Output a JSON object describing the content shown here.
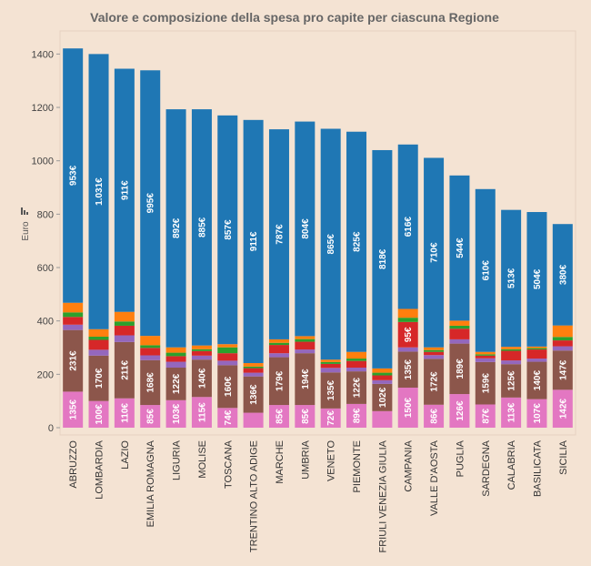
{
  "chart_data": {
    "type": "bar",
    "stacked": true,
    "title": "Valore e composizione della spesa pro capite per ciascuna Regione",
    "ylabel": "Euro",
    "ylim": [
      0,
      1470
    ],
    "yticks": [
      0,
      200,
      400,
      600,
      800,
      1000,
      1200,
      1400
    ],
    "grid": false,
    "categories": [
      "ABRUZZO",
      "LOMBARDIA",
      "LAZIO",
      "EMILIA ROMAGNA",
      "LIGURIA",
      "MOLISE",
      "TOSCANA",
      "TRENTINO ALTO ADIGE",
      "MARCHE",
      "UMBRIA",
      "VENETO",
      "PIEMONTE",
      "FRIULI VENEZIA GIULIA",
      "CAMPANIA",
      "VALLE D'AOSTA",
      "PUGLIA",
      "SARDEGNA",
      "CALABRIA",
      "BASILICATA",
      "SICILIA"
    ],
    "series": [
      {
        "color": "#e377c2",
        "values": [
          135,
          100,
          110,
          85,
          103,
          115,
          74,
          56,
          85,
          85,
          72,
          89,
          62,
          150,
          86,
          126,
          87,
          113,
          107,
          142
        ],
        "labels": [
          "135€",
          "100€",
          "110€",
          "85€",
          "103€",
          "115€",
          "74€",
          "",
          "85€",
          "85€",
          "72€",
          "89€",
          "",
          "150€",
          "86€",
          "126€",
          "87€",
          "113€",
          "107€",
          "142€"
        ]
      },
      {
        "color": "#8c564b",
        "values": [
          231,
          170,
          211,
          168,
          122,
          140,
          160,
          136,
          179,
          194,
          135,
          122,
          102,
          135,
          172,
          189,
          159,
          125,
          140,
          147
        ],
        "labels": [
          "231€",
          "170€",
          "211€",
          "168€",
          "122€",
          "140€",
          "160€",
          "136€",
          "179€",
          "194€",
          "135€",
          "122€",
          "102€",
          "135€",
          "172€",
          "189€",
          "159€",
          "125€",
          "140€",
          "147€"
        ]
      },
      {
        "color": "#9467bd",
        "values": [
          20,
          22,
          25,
          18,
          22,
          15,
          17,
          14,
          15,
          14,
          17,
          14,
          14,
          16,
          14,
          16,
          14,
          14,
          12,
          16
        ],
        "labels": []
      },
      {
        "color": "#d62728",
        "values": [
          29,
          37,
          36,
          28,
          21,
          17,
          28,
          17,
          31,
          29,
          15,
          25,
          18,
          95,
          12,
          40,
          10,
          36,
          34,
          22
        ],
        "labels": [
          "",
          "",
          "",
          "",
          "",
          "",
          "",
          "",
          "",
          "",
          "",
          "",
          "",
          "95€",
          "",
          "",
          "",
          "",
          "",
          ""
        ]
      },
      {
        "color": "#2ca02c",
        "values": [
          17,
          12,
          16,
          10,
          13,
          7,
          22,
          6,
          8,
          10,
          7,
          9,
          10,
          16,
          7,
          11,
          5,
          6,
          5,
          13
        ],
        "labels": []
      },
      {
        "color": "#ff7f0e",
        "values": [
          36,
          28,
          36,
          35,
          20,
          14,
          12,
          13,
          13,
          11,
          9,
          25,
          16,
          33,
          10,
          19,
          9,
          9,
          6,
          43
        ],
        "labels": []
      },
      {
        "color": "#1f77b4",
        "values": [
          953,
          1031,
          911,
          995,
          892,
          885,
          857,
          911,
          787,
          804,
          865,
          825,
          818,
          616,
          710,
          544,
          610,
          513,
          504,
          380
        ],
        "labels": [
          "953€",
          "1.031€",
          "911€",
          "995€",
          "892€",
          "885€",
          "857€",
          "911€",
          "787€",
          "804€",
          "865€",
          "825€",
          "818€",
          "616€",
          "710€",
          "544€",
          "610€",
          "513€",
          "504€",
          "380€"
        ]
      }
    ]
  }
}
